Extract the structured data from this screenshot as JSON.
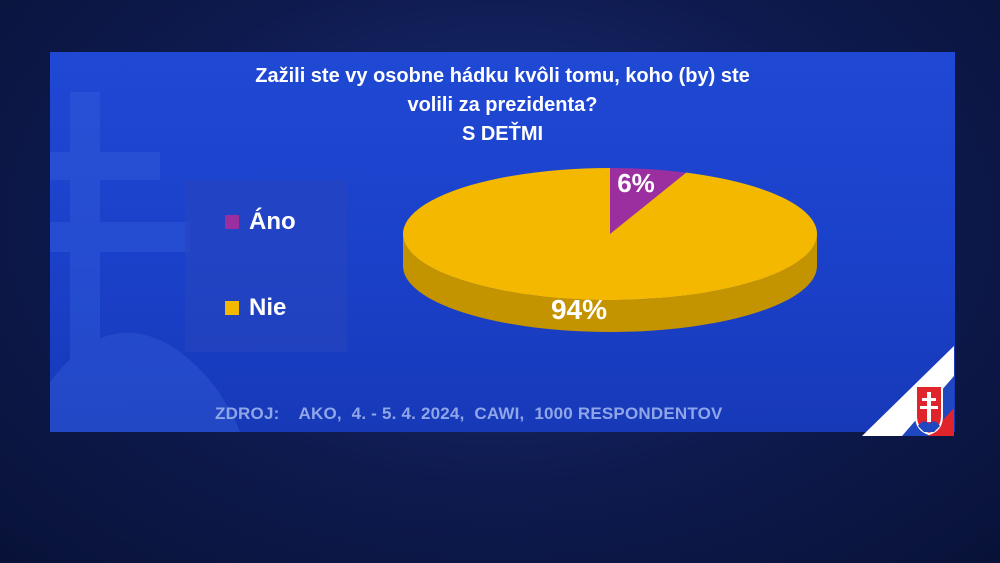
{
  "header": {
    "title_line1": "Zažili ste vy osobne hádku kvôli tomu, koho (by) ste",
    "title_line2": "volili za prezidenta?",
    "subtitle": "S DEŤMI"
  },
  "legend": [
    {
      "label": "Áno",
      "color": "#9b2fa0"
    },
    {
      "label": "Nie",
      "color": "#f5b800"
    }
  ],
  "chart_data": {
    "type": "pie",
    "title": "Zažili ste vy osobne hádku kvôli tomu, koho (by) ste volili za prezidenta?",
    "subtitle": "S DEŤMI",
    "slices": [
      {
        "label": "Áno",
        "value": 6,
        "display": "6%",
        "color": "#9b2fa0"
      },
      {
        "label": "Nie",
        "value": 94,
        "display": "94%",
        "color": "#f5b800"
      }
    ],
    "legend_position": "left",
    "style": "3d"
  },
  "footer": {
    "source": "ZDROJ:    AKO,  4. - 5. 4. 2024,  CAWI,  1000 RESPONDENTOV"
  },
  "colors": {
    "panel": "#1f48d4",
    "background": "#0e1a4e",
    "text": "#ffffff",
    "source_text": "#8fa6e8"
  }
}
